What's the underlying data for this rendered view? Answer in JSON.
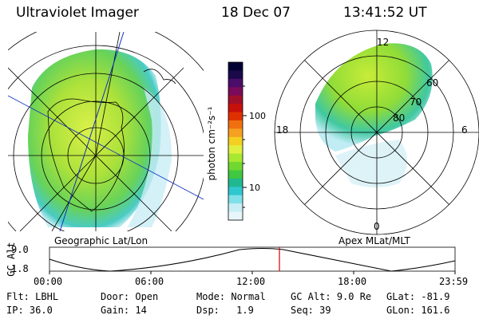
{
  "header": {
    "title": "Ultraviolet Imager",
    "date": "18 Dec 07",
    "time": "13:41:52 UT"
  },
  "left_panel": {
    "label": "Geographic Lat/Lon"
  },
  "right_panel": {
    "label": "Apex MLat/MLT",
    "mlt_labels": {
      "top": "12",
      "left": "18",
      "right": "6",
      "bottom": "0"
    },
    "lat_labels": [
      "60",
      "70",
      "80"
    ]
  },
  "colorbar": {
    "label": "photon cm⁻²s⁻¹",
    "ticks": [
      "100",
      "10"
    ],
    "colors": [
      "#000033",
      "#1a0a4a",
      "#4a0d6a",
      "#7a0a5a",
      "#a0102a",
      "#c8100a",
      "#e03000",
      "#f07010",
      "#f5a020",
      "#f5d020",
      "#e0f040",
      "#a8e830",
      "#70d830",
      "#40c840",
      "#20b890",
      "#30c8d0",
      "#80e0e8",
      "#c8eef5",
      "#e8f6fa"
    ]
  },
  "timeline": {
    "ylabel": "GC Alt",
    "ymax": "9.0",
    "ymin": "1.8",
    "ticks": [
      "00:00",
      "06:00",
      "12:00",
      "18:00",
      "23:59"
    ]
  },
  "footer": [
    {
      "k": "Flt:",
      "v": "LBHL"
    },
    {
      "k": "Door:",
      "v": "Open"
    },
    {
      "k": "Mode:",
      "v": "Normal"
    },
    {
      "k": "GC Alt:",
      "v": "9.0 Re"
    },
    {
      "k": "GLat:",
      "v": "-81.9"
    },
    {
      "k": "IP:",
      "v": "36.0"
    },
    {
      "k": "Gain:",
      "v": "14"
    },
    {
      "k": "Dsp:",
      "v": "1.9"
    },
    {
      "k": "Seq:",
      "v": "39"
    },
    {
      "k": "GLon:",
      "v": "161.6"
    }
  ]
}
